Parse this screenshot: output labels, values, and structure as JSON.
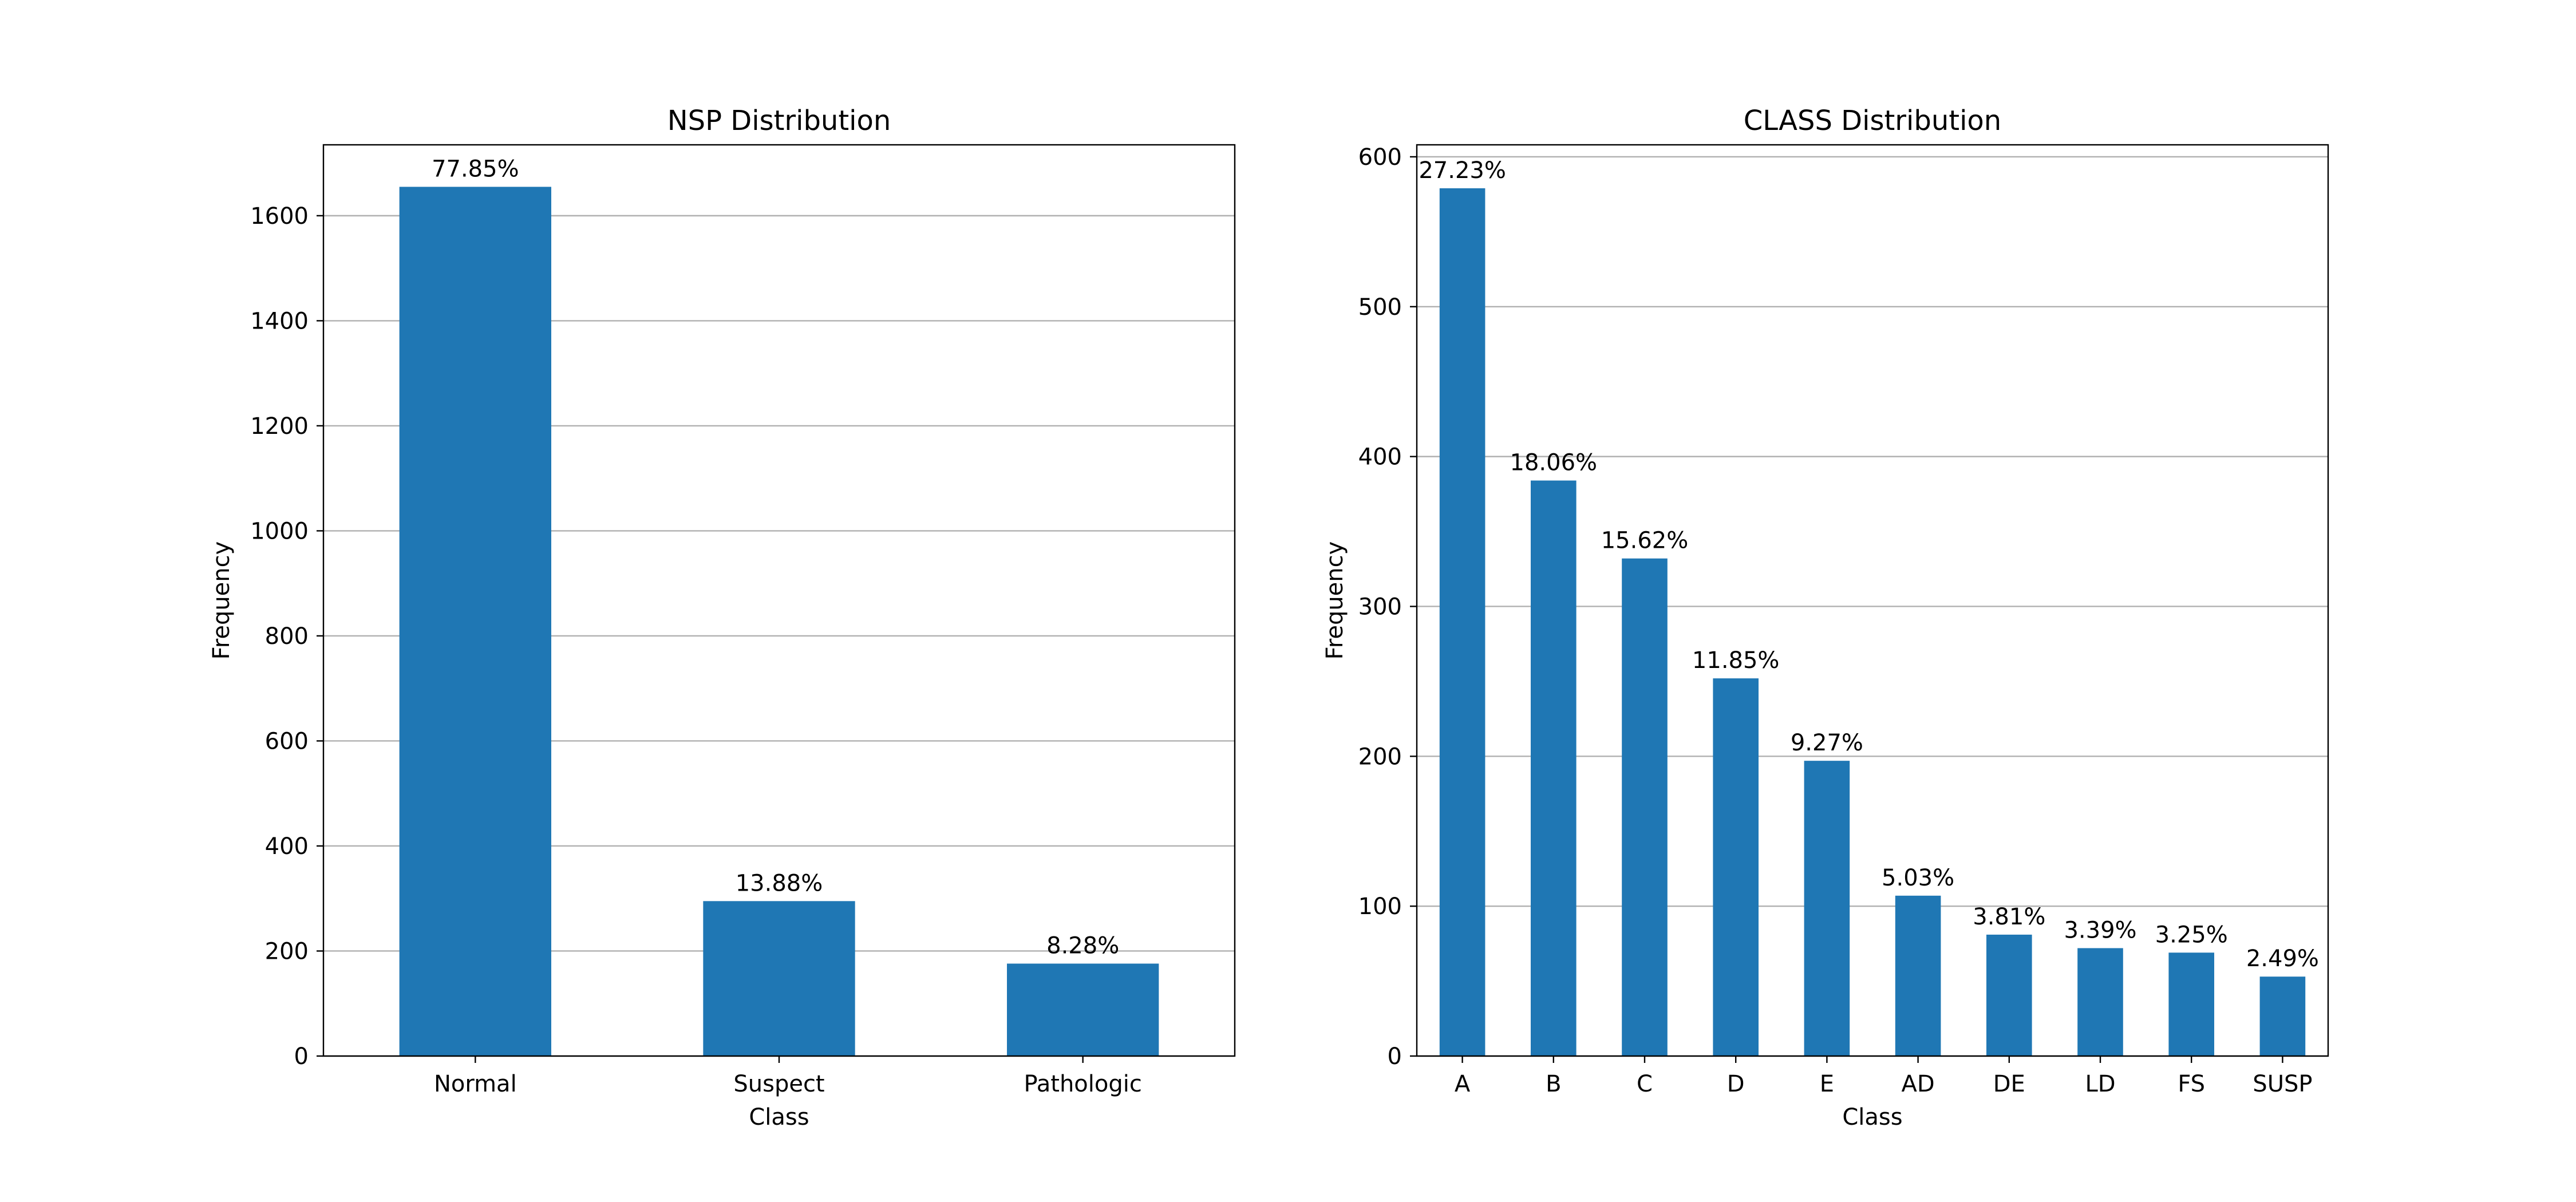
{
  "colors": {
    "bar": "#1f77b4",
    "grid": "#b0b0b0",
    "axis": "#000000",
    "background": "#ffffff"
  },
  "chart_data": [
    {
      "type": "bar",
      "title": "NSP Distribution",
      "xlabel": "Class",
      "ylabel": "Frequency",
      "categories": [
        "Normal",
        "Suspect",
        "Pathologic"
      ],
      "values": [
        1655,
        295,
        176
      ],
      "data_labels": [
        "77.85%",
        "13.88%",
        "8.28%"
      ],
      "ylim": [
        0,
        1735
      ],
      "yticks": [
        0,
        200,
        400,
        600,
        800,
        1000,
        1200,
        1400,
        1600
      ],
      "grid": "y-axis major",
      "legend": "none"
    },
    {
      "type": "bar",
      "title": "CLASS Distribution",
      "xlabel": "Class",
      "ylabel": "Frequency",
      "categories": [
        "A",
        "B",
        "C",
        "D",
        "E",
        "AD",
        "DE",
        "LD",
        "FS",
        "SUSP"
      ],
      "values": [
        579,
        384,
        332,
        252,
        197,
        107,
        81,
        72,
        69,
        53
      ],
      "data_labels": [
        "27.23%",
        "18.06%",
        "15.62%",
        "11.85%",
        "9.27%",
        "5.03%",
        "3.81%",
        "3.39%",
        "3.25%",
        "2.49%"
      ],
      "ylim": [
        0,
        608
      ],
      "yticks": [
        0,
        100,
        200,
        300,
        400,
        500,
        600
      ],
      "grid": "y-axis major",
      "legend": "none"
    }
  ]
}
